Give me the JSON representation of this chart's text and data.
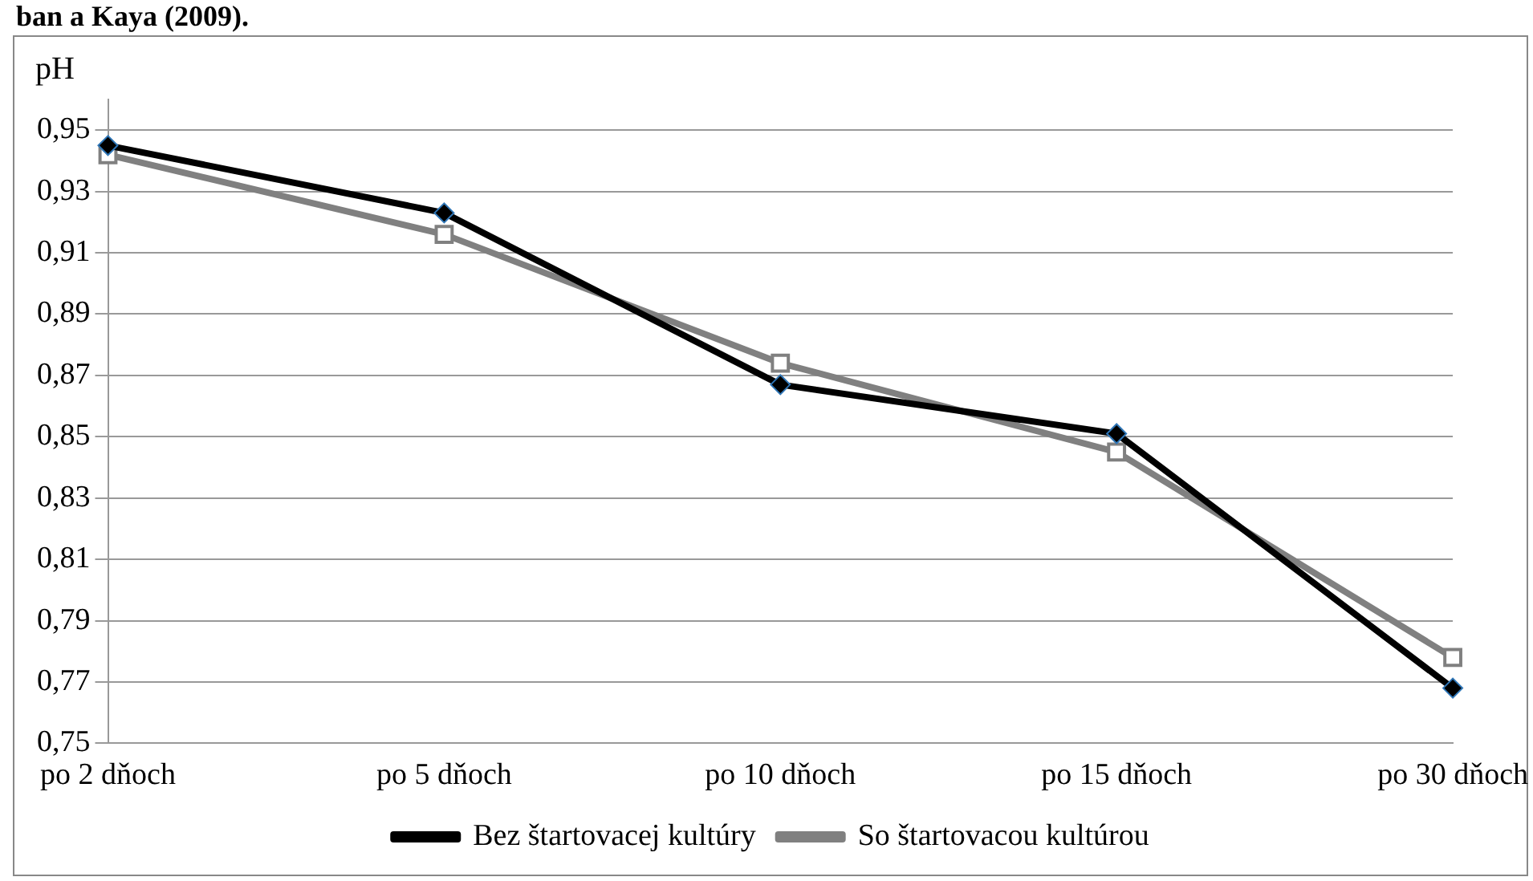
{
  "chart_data": {
    "type": "line",
    "ylabel": "pH",
    "annotations": [
      "ban a Kaya (2009)."
    ],
    "categories": [
      "po 2 dňoch",
      "po 5 dňoch",
      "po 10 dňoch",
      "po 15 dňoch",
      "po 30 dňoch"
    ],
    "series": [
      {
        "name": "Bez štartovacej kultúry",
        "color": "#000000",
        "marker": "diamond",
        "values": [
          0.945,
          0.923,
          0.867,
          0.851,
          0.768
        ]
      },
      {
        "name": "So štartovacou kultúrou",
        "color": "#808080",
        "marker": "square",
        "values": [
          0.942,
          0.916,
          0.874,
          0.845,
          0.778
        ]
      }
    ],
    "ylim": [
      0.75,
      0.96
    ],
    "yticks": [
      {
        "value": 0.75,
        "label": "0,75"
      },
      {
        "value": 0.77,
        "label": "0,77"
      },
      {
        "value": 0.79,
        "label": "0,79"
      },
      {
        "value": 0.81,
        "label": "0,81"
      },
      {
        "value": 0.83,
        "label": "0,83"
      },
      {
        "value": 0.85,
        "label": "0,85"
      },
      {
        "value": 0.87,
        "label": "0,87"
      },
      {
        "value": 0.89,
        "label": "0,89"
      },
      {
        "value": 0.91,
        "label": "0,91"
      },
      {
        "value": 0.93,
        "label": "0,93"
      },
      {
        "value": 0.95,
        "label": "0,95"
      }
    ],
    "grid": "y",
    "legend": "bottom",
    "line_style": "solid"
  }
}
